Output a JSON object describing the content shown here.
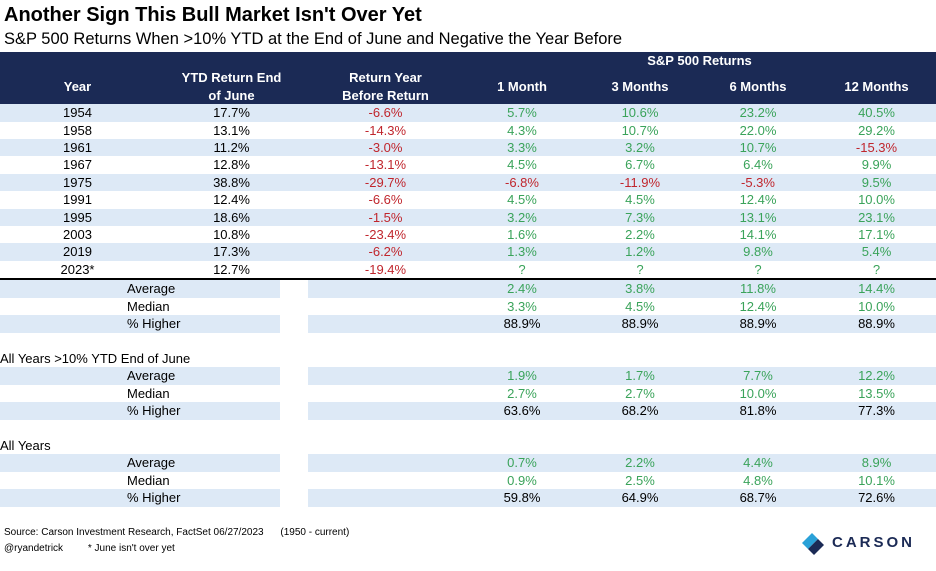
{
  "title": "Another Sign This Bull Market Isn't Over Yet",
  "subtitle": "S&P 500 Returns When >10% YTD at the End of June and Negative the Year Before",
  "table": {
    "group_header": "S&P 500 Returns",
    "headers": [
      "Year",
      "YTD Return End of June",
      "Return Year Before Return",
      "1 Month",
      "3 Months",
      "6 Months",
      "12 Months"
    ],
    "header_lines": {
      "ytd_line1": "YTD Return End",
      "ytd_line2": "of June",
      "prior_line1": "Return Year",
      "prior_line2": "Before Return"
    },
    "rows": [
      {
        "year": "1954",
        "ytd": "17.7%",
        "prior": "-6.6%",
        "m1": "5.7%",
        "m3": "10.6%",
        "m6": "23.2%",
        "m12": "40.5%"
      },
      {
        "year": "1958",
        "ytd": "13.1%",
        "prior": "-14.3%",
        "m1": "4.3%",
        "m3": "10.7%",
        "m6": "22.0%",
        "m12": "29.2%"
      },
      {
        "year": "1961",
        "ytd": "11.2%",
        "prior": "-3.0%",
        "m1": "3.3%",
        "m3": "3.2%",
        "m6": "10.7%",
        "m12": "-15.3%"
      },
      {
        "year": "1967",
        "ytd": "12.8%",
        "prior": "-13.1%",
        "m1": "4.5%",
        "m3": "6.7%",
        "m6": "6.4%",
        "m12": "9.9%"
      },
      {
        "year": "1975",
        "ytd": "38.8%",
        "prior": "-29.7%",
        "m1": "-6.8%",
        "m3": "-11.9%",
        "m6": "-5.3%",
        "m12": "9.5%"
      },
      {
        "year": "1991",
        "ytd": "12.4%",
        "prior": "-6.6%",
        "m1": "4.5%",
        "m3": "4.5%",
        "m6": "12.4%",
        "m12": "10.0%"
      },
      {
        "year": "1995",
        "ytd": "18.6%",
        "prior": "-1.5%",
        "m1": "3.2%",
        "m3": "7.3%",
        "m6": "13.1%",
        "m12": "23.1%"
      },
      {
        "year": "2003",
        "ytd": "10.8%",
        "prior": "-23.4%",
        "m1": "1.6%",
        "m3": "2.2%",
        "m6": "14.1%",
        "m12": "17.1%"
      },
      {
        "year": "2019",
        "ytd": "17.3%",
        "prior": "-6.2%",
        "m1": "1.3%",
        "m3": "1.2%",
        "m6": "9.8%",
        "m12": "5.4%"
      },
      {
        "year": "2023*",
        "ytd": "12.7%",
        "prior": "-19.4%",
        "m1": "?",
        "m3": "?",
        "m6": "?",
        "m12": "?"
      }
    ],
    "summary": [
      {
        "label": "Average",
        "m1": "2.4%",
        "m3": "3.8%",
        "m6": "11.8%",
        "m12": "14.4%"
      },
      {
        "label": "Median",
        "m1": "3.3%",
        "m3": "4.5%",
        "m6": "12.4%",
        "m12": "10.0%"
      },
      {
        "label": "% Higher",
        "m1": "88.9%",
        "m3": "88.9%",
        "m6": "88.9%",
        "m12": "88.9%"
      }
    ],
    "section2": {
      "label": "All Years >10% YTD End of June",
      "rows": [
        {
          "label": "Average",
          "m1": "1.9%",
          "m3": "1.7%",
          "m6": "7.7%",
          "m12": "12.2%"
        },
        {
          "label": "Median",
          "m1": "2.7%",
          "m3": "2.7%",
          "m6": "10.0%",
          "m12": "13.5%"
        },
        {
          "label": "% Higher",
          "m1": "63.6%",
          "m3": "68.2%",
          "m6": "81.8%",
          "m12": "77.3%"
        }
      ]
    },
    "section3": {
      "label": "All Years",
      "rows": [
        {
          "label": "Average",
          "m1": "0.7%",
          "m3": "2.2%",
          "m6": "4.4%",
          "m12": "8.9%"
        },
        {
          "label": "Median",
          "m1": "0.9%",
          "m3": "2.5%",
          "m6": "4.8%",
          "m12": "10.1%"
        },
        {
          "label": "% Higher",
          "m1": "59.8%",
          "m3": "64.9%",
          "m6": "68.7%",
          "m12": "72.6%"
        }
      ]
    }
  },
  "footer": {
    "source": "Source: Carson Investment Research, FactSet 06/27/2023",
    "range": "(1950 - current)",
    "handle": "@ryandetrick",
    "note": "* June isn't over yet"
  },
  "logo": {
    "text": "CARSON"
  },
  "colors": {
    "header_bg": "#1b2a55",
    "band": "#dde9f6",
    "positive": "#3aa35a",
    "negative": "#c0262d"
  }
}
